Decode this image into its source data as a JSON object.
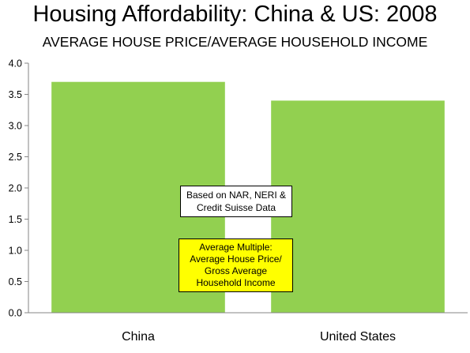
{
  "chart_data": {
    "type": "bar",
    "title": "Housing Affordability: China & US: 2008",
    "subtitle": "AVERAGE HOUSE PRICE/AVERAGE HOUSEHOLD INCOME",
    "categories": [
      "China",
      "United States"
    ],
    "values": [
      3.7,
      3.4
    ],
    "ylim": [
      0,
      4.0
    ],
    "yticks": [
      "0.0",
      "0.5",
      "1.0",
      "1.5",
      "2.0",
      "2.5",
      "3.0",
      "3.5",
      "4.0"
    ],
    "grid": false,
    "legend": "none",
    "bar_color": "#92d050",
    "annotations": [
      {
        "lines": [
          "Based on NAR, NERI &",
          "Credit Suisse Data"
        ],
        "background": "#ffffff"
      },
      {
        "lines": [
          "Average Multiple:",
          "Average House Price/",
          "Gross Average",
          "Household Income"
        ],
        "background": "#ffff00"
      }
    ]
  }
}
